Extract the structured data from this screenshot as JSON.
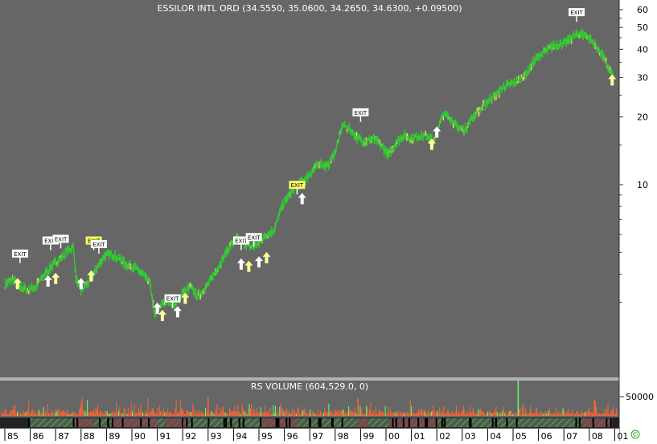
{
  "chart_data": [
    {
      "type": "line",
      "title": "ESSILOR INTL ORD (34.5550, 35.0600, 34.2650, 34.6300, +0.09500)",
      "scale": "log",
      "y_ticks": [
        10,
        20,
        30,
        40,
        50,
        60
      ],
      "x_ticks": [
        "85",
        "86",
        "87",
        "88",
        "89",
        "90",
        "91",
        "92",
        "93",
        "94",
        "95",
        "96",
        "97",
        "98",
        "99",
        "00",
        "01",
        "02",
        "03",
        "04",
        "05",
        "06",
        "07",
        "08",
        "01"
      ],
      "series": [
        {
          "x": [
            1985.0,
            1985.3,
            1985.6,
            1985.9,
            1986.2,
            1986.5,
            1986.8,
            1987.1,
            1987.4,
            1987.7,
            1987.8,
            1988.0,
            1988.3,
            1988.6,
            1988.9,
            1989.2,
            1989.5,
            1989.8,
            1990.1,
            1990.4,
            1990.7,
            1990.9,
            1991.1,
            1991.4,
            1991.7,
            1992.0,
            1992.3,
            1992.6,
            1993.0,
            1993.4,
            1993.8,
            1994.1,
            1994.4,
            1994.7,
            1995.0,
            1995.3,
            1995.6,
            1995.9,
            1996.2,
            1996.5,
            1996.8,
            1997.1,
            1997.4,
            1997.7,
            1998.0,
            1998.3,
            1998.6,
            1998.9,
            1999.2,
            1999.5,
            1999.8,
            2000.1,
            2000.4,
            2000.7,
            2001.0,
            2001.3,
            2001.6,
            2001.9,
            2002.2,
            2002.5,
            2002.8,
            2003.1,
            2003.4,
            2003.7,
            2004.0,
            2004.3,
            2004.6,
            2004.9,
            2005.2,
            2005.5,
            2005.8,
            2006.1,
            2006.4,
            2006.7,
            2007.0,
            2007.3,
            2007.6,
            2007.9,
            2008.2,
            2008.5,
            2008.8,
            2008.95
          ],
          "values": [
            3.6,
            3.8,
            3.5,
            3.4,
            3.5,
            3.9,
            4.3,
            4.6,
            5.0,
            5.3,
            3.8,
            3.4,
            3.7,
            4.2,
            4.8,
            4.9,
            4.7,
            4.4,
            4.3,
            4.0,
            3.7,
            2.6,
            2.9,
            3.1,
            2.9,
            3.3,
            3.5,
            3.2,
            3.6,
            4.3,
            5.2,
            5.8,
            5.5,
            5.3,
            5.5,
            6.0,
            6.3,
            8.0,
            9.0,
            10.0,
            10.5,
            11.5,
            12.5,
            12.0,
            14.0,
            18.5,
            17.5,
            16.0,
            15.5,
            16.0,
            15.0,
            13.5,
            15.5,
            16.5,
            16.0,
            16.5,
            16.5,
            15.5,
            20.5,
            20.0,
            18.0,
            17.5,
            20.0,
            21.5,
            23.5,
            25.0,
            27.0,
            28.0,
            29.0,
            31.0,
            35.0,
            38.0,
            40.0,
            42.0,
            42.5,
            45.0,
            47.0,
            46.0,
            42.0,
            38.0,
            32.0,
            30.0
          ]
        }
      ],
      "markers": [
        {
          "kind": "up-arrow",
          "x": 1985.5,
          "y": 3.6
        },
        {
          "kind": "up-arrow",
          "x": 1986.7,
          "y": 3.7
        },
        {
          "kind": "up-arrow",
          "x": 1987.0,
          "y": 3.8
        },
        {
          "kind": "up-arrow",
          "x": 1988.0,
          "y": 3.6
        },
        {
          "kind": "up-arrow",
          "x": 1988.4,
          "y": 3.9
        },
        {
          "kind": "up-arrow",
          "x": 1991.0,
          "y": 2.8
        },
        {
          "kind": "up-arrow",
          "x": 1991.2,
          "y": 2.6
        },
        {
          "kind": "up-arrow",
          "x": 1991.8,
          "y": 2.7
        },
        {
          "kind": "up-arrow",
          "x": 1992.1,
          "y": 3.1
        },
        {
          "kind": "up-arrow",
          "x": 1994.3,
          "y": 4.4
        },
        {
          "kind": "up-arrow",
          "x": 1994.6,
          "y": 4.3
        },
        {
          "kind": "up-arrow",
          "x": 1995.0,
          "y": 4.5
        },
        {
          "kind": "up-arrow",
          "x": 1995.3,
          "y": 4.7
        },
        {
          "kind": "up-arrow",
          "x": 1996.7,
          "y": 8.6
        },
        {
          "kind": "up-arrow",
          "x": 2001.8,
          "y": 15.0
        },
        {
          "kind": "up-arrow",
          "x": 2002.0,
          "y": 17.0
        },
        {
          "kind": "up-arrow",
          "x": 2008.9,
          "y": 29.0
        }
      ],
      "exit_labels": [
        {
          "text": "EXIT",
          "x": 1985.6,
          "y": 4.9
        },
        {
          "text": "EXIT",
          "x": 1986.8,
          "y": 5.6
        },
        {
          "text": "EXIT",
          "x": 1987.2,
          "y": 5.7
        },
        {
          "text": "EXIT",
          "x": 1988.5,
          "y": 5.6
        },
        {
          "text": "EXIT",
          "x": 1988.7,
          "y": 5.4
        },
        {
          "text": "EXIT",
          "x": 1991.6,
          "y": 3.1
        },
        {
          "text": "EXIT",
          "x": 1994.3,
          "y": 5.6
        },
        {
          "text": "EXIT",
          "x": 1994.8,
          "y": 5.8
        },
        {
          "text": "EXIT",
          "x": 1996.5,
          "y": 9.9
        },
        {
          "text": "EXIT",
          "x": 1999.0,
          "y": 20.8
        },
        {
          "text": "EXIT",
          "x": 2007.5,
          "y": 58.0
        }
      ]
    },
    {
      "type": "bar",
      "title": "RS VOLUME (604,529.0, 0)",
      "y_ticks": [
        50000
      ]
    }
  ],
  "colors": {
    "background": "#666666",
    "price": "#33cc33",
    "volume": "#ff6633",
    "volume_spike": "#66ff66",
    "arrow_white": "#ffffff",
    "arrow_yellow": "#ffff99",
    "exit_bg": "#ffffff",
    "exit_bg_yellow": "#ffff66",
    "hatch_green": "#33aa33",
    "hatch_red": "#cc3333"
  },
  "corner_icon": "copyright-icon",
  "corner_text": "©"
}
